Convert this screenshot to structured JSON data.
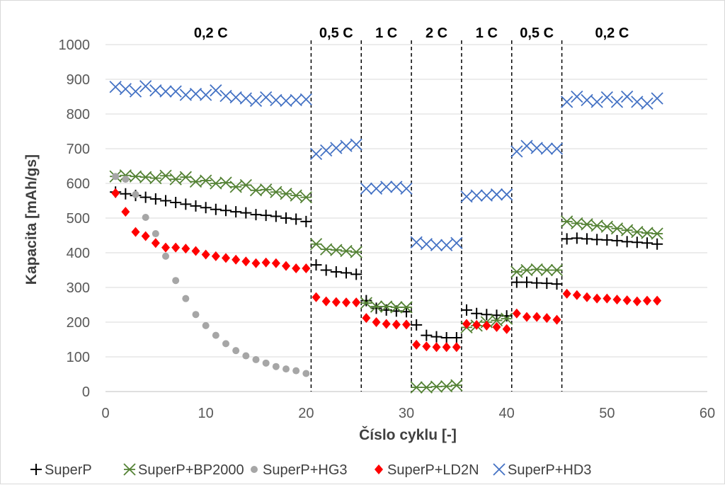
{
  "chart_data": {
    "type": "scatter",
    "xlabel": "Číslo cyklu [-]",
    "ylabel": "Kapacita [mAh/gs]",
    "xlim": [
      0,
      60
    ],
    "ylim": [
      0,
      1000
    ],
    "xticks": [
      0,
      10,
      20,
      30,
      40,
      50,
      60
    ],
    "yticks": [
      0,
      100,
      200,
      300,
      400,
      500,
      600,
      700,
      800,
      900,
      1000
    ],
    "grid": "horizontal",
    "legend_position": "bottom",
    "rate_labels": [
      {
        "label": "0,2 C",
        "x": 10.5
      },
      {
        "label": "0,5 C",
        "x": 23
      },
      {
        "label": "1 C",
        "x": 28
      },
      {
        "label": "2 C",
        "x": 33
      },
      {
        "label": "1 C",
        "x": 38
      },
      {
        "label": "0,5 C",
        "x": 43
      },
      {
        "label": "0,2 C",
        "x": 50.5
      }
    ],
    "dividers": [
      20.5,
      25.5,
      30.5,
      35.5,
      40.5,
      45.5
    ],
    "series": [
      {
        "name": "SuperP",
        "marker": "plus",
        "color": "#000000",
        "x": [
          1,
          2,
          3,
          4,
          5,
          6,
          7,
          8,
          9,
          10,
          11,
          12,
          13,
          14,
          15,
          16,
          17,
          18,
          19,
          20,
          21,
          22,
          23,
          24,
          25,
          26,
          27,
          28,
          29,
          30,
          31,
          32,
          33,
          34,
          35,
          36,
          37,
          38,
          39,
          40,
          41,
          42,
          43,
          44,
          45,
          46,
          47,
          48,
          49,
          50,
          51,
          52,
          53,
          54,
          55
        ],
        "y": [
          575,
          570,
          565,
          560,
          555,
          550,
          545,
          540,
          535,
          530,
          525,
          522,
          518,
          515,
          510,
          508,
          505,
          500,
          497,
          490,
          365,
          350,
          345,
          342,
          338,
          262,
          240,
          235,
          232,
          230,
          192,
          162,
          158,
          155,
          155,
          235,
          225,
          222,
          220,
          218,
          315,
          315,
          313,
          312,
          310,
          440,
          442,
          440,
          438,
          437,
          435,
          432,
          430,
          428,
          425
        ]
      },
      {
        "name": "SuperP+BP2000",
        "marker": "asterisk",
        "color": "#548235",
        "x": [
          1,
          2,
          3,
          4,
          5,
          6,
          7,
          8,
          9,
          10,
          11,
          12,
          13,
          14,
          15,
          16,
          17,
          18,
          19,
          20,
          21,
          22,
          23,
          24,
          25,
          26,
          27,
          28,
          29,
          30,
          31,
          32,
          33,
          34,
          35,
          36,
          37,
          38,
          39,
          40,
          41,
          42,
          43,
          44,
          45,
          46,
          47,
          48,
          49,
          50,
          51,
          52,
          53,
          54,
          55
        ],
        "y": [
          620,
          623,
          620,
          618,
          615,
          622,
          612,
          618,
          605,
          608,
          600,
          602,
          590,
          595,
          580,
          582,
          575,
          570,
          565,
          560,
          425,
          410,
          408,
          405,
          402,
          255,
          245,
          245,
          243,
          243,
          12,
          12,
          14,
          15,
          18,
          185,
          190,
          200,
          205,
          210,
          345,
          350,
          352,
          350,
          350,
          490,
          485,
          482,
          478,
          475,
          470,
          465,
          460,
          457,
          455
        ]
      },
      {
        "name": "SuperP+HG3",
        "marker": "circle",
        "color": "#a6a6a6",
        "x": [
          1,
          2,
          3,
          4,
          5,
          6,
          7,
          8,
          9,
          10,
          11,
          12,
          13,
          14,
          15,
          16,
          17,
          18,
          19,
          20
        ],
        "y": [
          620,
          612,
          568,
          502,
          455,
          390,
          320,
          268,
          222,
          190,
          162,
          138,
          118,
          103,
          92,
          82,
          72,
          65,
          60,
          52
        ]
      },
      {
        "name": "SuperP+LD2N",
        "marker": "diamond",
        "color": "#ff0000",
        "x": [
          1,
          2,
          3,
          4,
          5,
          6,
          7,
          8,
          9,
          10,
          11,
          12,
          13,
          14,
          15,
          16,
          17,
          18,
          19,
          20,
          21,
          22,
          23,
          24,
          25,
          26,
          27,
          28,
          29,
          30,
          31,
          32,
          33,
          34,
          35,
          36,
          37,
          38,
          39,
          40,
          41,
          42,
          43,
          44,
          45,
          46,
          47,
          48,
          49,
          50,
          51,
          52,
          53,
          54,
          55
        ],
        "y": [
          572,
          518,
          460,
          448,
          428,
          415,
          415,
          412,
          405,
          395,
          390,
          385,
          380,
          375,
          370,
          372,
          370,
          362,
          355,
          355,
          272,
          260,
          258,
          257,
          257,
          212,
          200,
          195,
          193,
          193,
          135,
          130,
          128,
          128,
          128,
          195,
          192,
          190,
          186,
          180,
          225,
          215,
          215,
          212,
          207,
          282,
          278,
          272,
          268,
          268,
          265,
          263,
          260,
          262,
          262
        ]
      },
      {
        "name": "SuperP+HD3",
        "marker": "x",
        "color": "#4472c4",
        "x": [
          1,
          2,
          3,
          4,
          5,
          6,
          7,
          8,
          9,
          10,
          11,
          12,
          13,
          14,
          15,
          16,
          17,
          18,
          19,
          20,
          21,
          22,
          23,
          24,
          25,
          26,
          27,
          28,
          29,
          30,
          31,
          32,
          33,
          34,
          35,
          36,
          37,
          38,
          39,
          40,
          41,
          42,
          43,
          44,
          45,
          46,
          47,
          48,
          49,
          50,
          51,
          52,
          53,
          54,
          55
        ],
        "y": [
          878,
          872,
          865,
          880,
          868,
          865,
          865,
          855,
          858,
          855,
          868,
          852,
          848,
          845,
          838,
          848,
          840,
          838,
          840,
          842,
          685,
          695,
          702,
          708,
          712,
          585,
          585,
          590,
          590,
          585,
          430,
          425,
          422,
          422,
          428,
          562,
          565,
          565,
          568,
          568,
          692,
          708,
          702,
          700,
          700,
          835,
          850,
          840,
          835,
          848,
          835,
          850,
          835,
          830,
          845
        ]
      }
    ]
  }
}
